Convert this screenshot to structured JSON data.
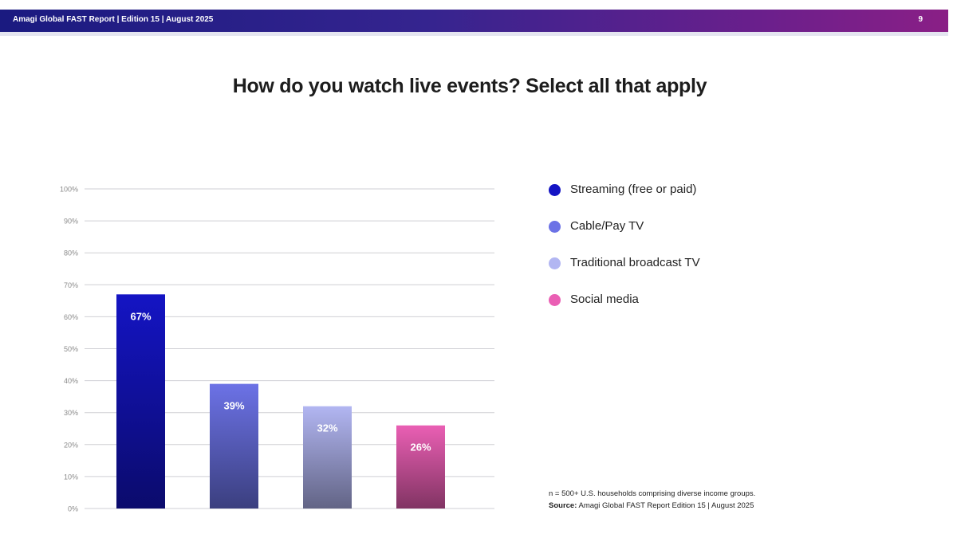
{
  "header": {
    "report_title": "Amagi Global FAST Report | Edition 15 | August 2025",
    "page_number": "9"
  },
  "chart_data": {
    "type": "bar",
    "title": "How do you watch live events? Select all that apply",
    "categories": [
      "Streaming (free or paid)",
      "Cable/Pay TV",
      "Traditional broadcast TV",
      "Social media"
    ],
    "values": [
      67,
      39,
      32,
      26
    ],
    "value_labels": [
      "67%",
      "39%",
      "32%",
      "26%"
    ],
    "colors": [
      "#1414c4",
      "#6c72e6",
      "#b2b6f2",
      "#ea5fb4"
    ],
    "yticks": [
      "0%",
      "10%",
      "20%",
      "30%",
      "40%",
      "50%",
      "60%",
      "70%",
      "80%",
      "90%",
      "100%"
    ],
    "ylim": [
      0,
      100
    ],
    "grid": true,
    "legend_position": "right"
  },
  "footnote": {
    "sample": "n = 500+ U.S. households comprising diverse income groups.",
    "source_label": "Source:",
    "source_text": " Amagi Global FAST Report Edition 15 | August 2025"
  }
}
